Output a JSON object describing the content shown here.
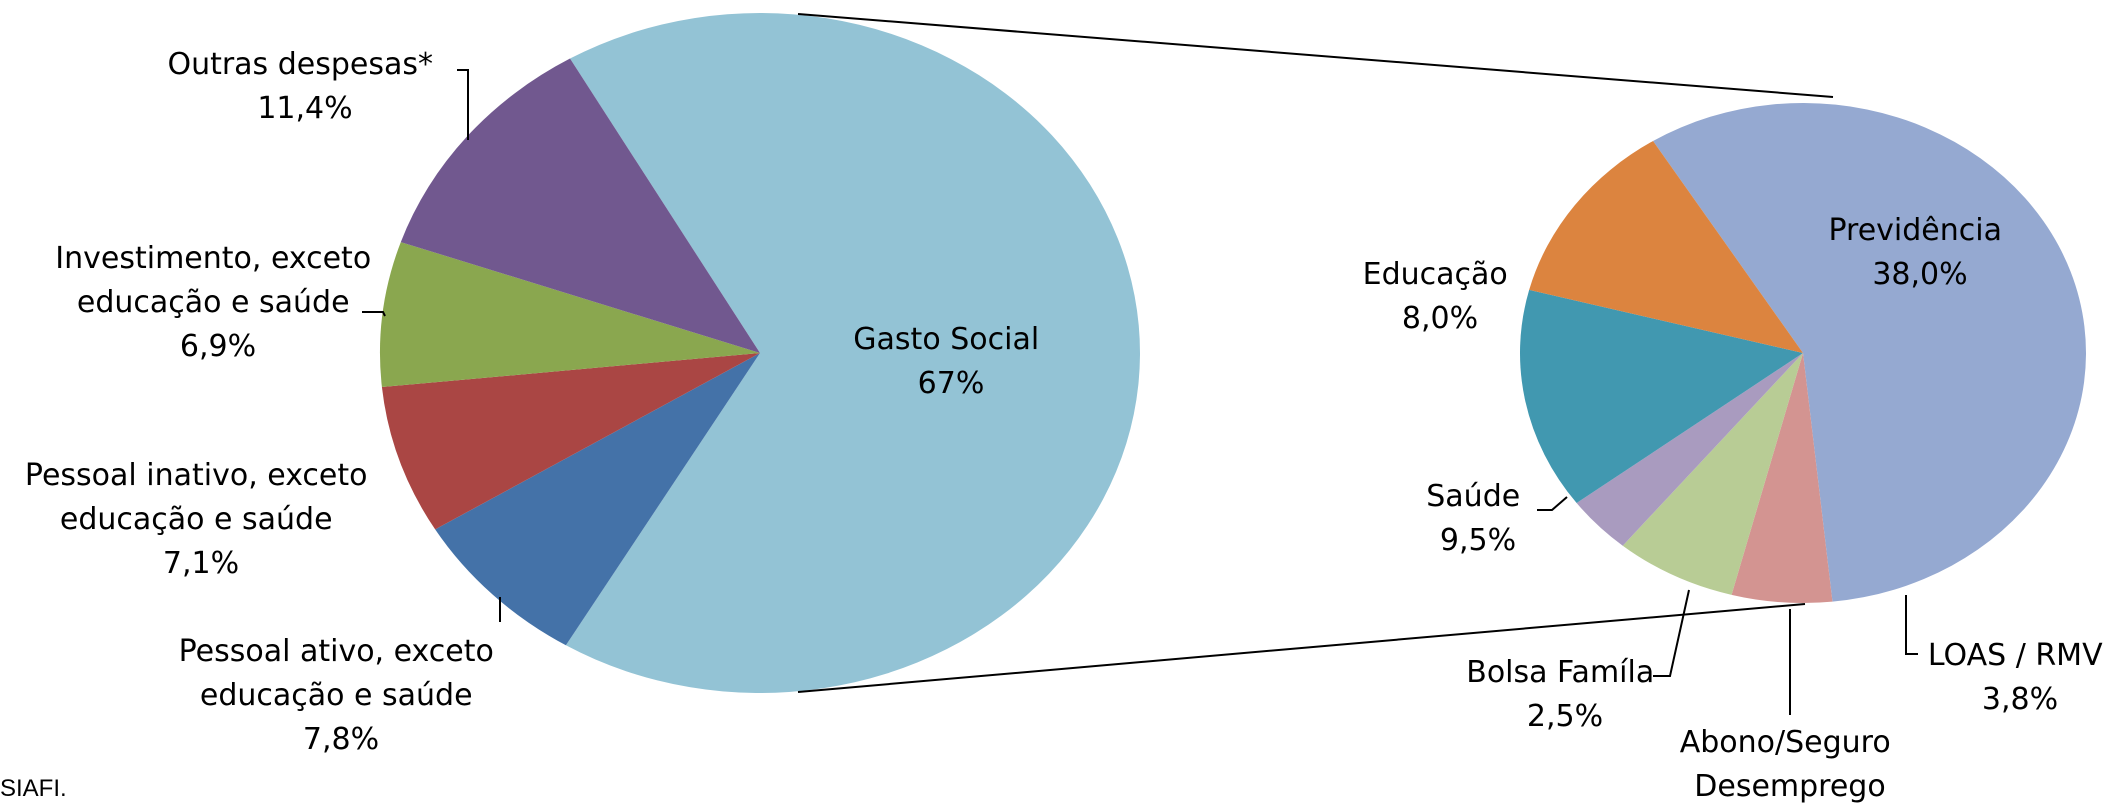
{
  "source_note": "SIAFI.",
  "chart_data": [
    {
      "type": "pie",
      "slices": [
        {
          "label": "Gasto Social",
          "value": 67,
          "value_label": "67%",
          "color": "#93c3d5"
        },
        {
          "label": "Pessoal ativo, exceto educação e saúde",
          "value": 7.8,
          "value_label": "7,8%",
          "color": "#4472a8"
        },
        {
          "label": "Pessoal inativo, exceto educação e saúde",
          "value": 7.1,
          "value_label": "7,1%",
          "color": "#aa4644"
        },
        {
          "label": "Investimento, exceto educação e saúde",
          "value": 6.9,
          "value_label": "6,9%",
          "color": "#8aa74f"
        },
        {
          "label": "Outras despesas*",
          "value": 11.4,
          "value_label": "11,4%",
          "color": "#71588f"
        }
      ]
    },
    {
      "type": "pie",
      "slices": [
        {
          "label": "Previdência",
          "value": 38.0,
          "value_label": "38,0%",
          "color": "#95a9d1"
        },
        {
          "label": "LOAS / RMV",
          "value": 3.8,
          "value_label": "3,8%",
          "color": "#d39491"
        },
        {
          "label": "Abono/Seguro Desemprego",
          "value": 4.6,
          "value_label": "",
          "color": "#b8cc95"
        },
        {
          "label": "Bolsa Famíla",
          "value": 2.5,
          "value_label": "2,5%",
          "color": "#a99bbf"
        },
        {
          "label": "Saúde",
          "value": 9.5,
          "value_label": "9,5%",
          "color": "#4198b0"
        },
        {
          "label": "Educação",
          "value": 8.0,
          "value_label": "8,0%",
          "color": "#dc843f"
        }
      ]
    }
  ]
}
